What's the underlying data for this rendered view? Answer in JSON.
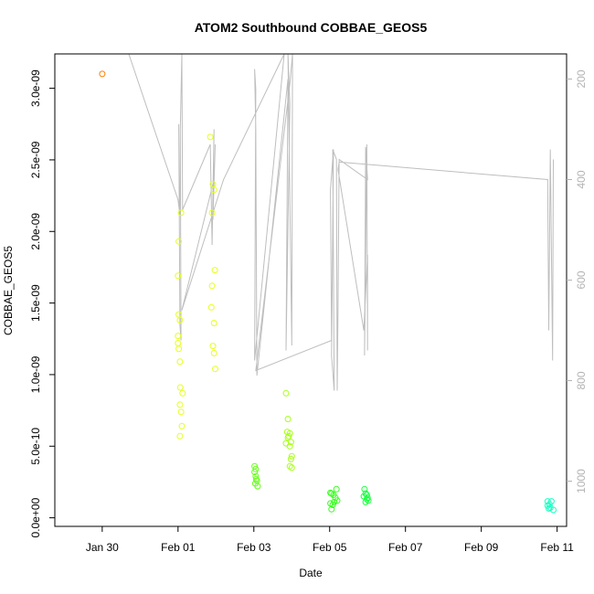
{
  "chart_data": {
    "type": "scatter",
    "title": "ATOM2 Southbound COBBAE_GEOS5",
    "xlabel": "Date",
    "ylabel": "COBBAE_GEOS5",
    "x_ticks": [
      "Jan 30",
      "Feb 01",
      "Feb 03",
      "Feb 05",
      "Feb 07",
      "Feb 09",
      "Feb 11"
    ],
    "y_ticks": [
      "0.0e+00",
      "5.0e-10",
      "1.0e-09",
      "1.5e-09",
      "2.0e-09",
      "2.5e-09",
      "3.0e-09"
    ],
    "y2_ticks": [
      "200",
      "400",
      "600",
      "800",
      "1000"
    ],
    "xlim": [
      -2.25,
      11.25
    ],
    "ylim": [
      -6e-11,
      3.24e-09
    ],
    "y2lim": [
      1090,
      150
    ],
    "colors": {
      "orange": "#ff8000",
      "yellow": "#e6ff1a",
      "yellowgreen": "#a8ff1a",
      "green1": "#66ff1a",
      "green2": "#33ff1a",
      "green3": "#1aff40",
      "green4": "#1aff66",
      "cyan": "#1affc4",
      "secondary_line": "#bebebe"
    },
    "series": [
      {
        "color_key": "orange",
        "points": [
          [
            -1.0,
            3.1e-09
          ]
        ]
      },
      {
        "color_key": "yellow",
        "points": [
          [
            1.0,
            1.22e-09
          ],
          [
            1.0,
            1.27e-09
          ],
          [
            1.02,
            1.42e-09
          ],
          [
            1.0,
            1.69e-09
          ],
          [
            1.02,
            1.93e-09
          ],
          [
            1.05,
            1.38e-09
          ],
          [
            1.08,
            2.13e-09
          ],
          [
            1.05,
            1.09e-09
          ],
          [
            1.06,
            9.1e-10
          ],
          [
            1.12,
            8.7e-10
          ],
          [
            1.05,
            7.9e-10
          ],
          [
            1.08,
            7.4e-10
          ],
          [
            1.1,
            6.4e-10
          ],
          [
            1.05,
            5.7e-10
          ],
          [
            1.02,
            1.18e-09
          ]
        ]
      },
      {
        "color_key": "yellow",
        "points": [
          [
            1.85,
            2.66e-09
          ],
          [
            1.92,
            2.33e-09
          ],
          [
            1.95,
            2.29e-09
          ],
          [
            1.9,
            2.13e-09
          ],
          [
            1.97,
            1.73e-09
          ],
          [
            1.9,
            1.62e-09
          ],
          [
            1.88,
            1.47e-09
          ],
          [
            1.95,
            1.36e-09
          ],
          [
            1.92,
            1.2e-09
          ],
          [
            1.95,
            1.15e-09
          ],
          [
            1.98,
            1.04e-09
          ]
        ]
      },
      {
        "color_key": "green1",
        "points": [
          [
            3.02,
            3.6e-10
          ],
          [
            3.05,
            3.4e-10
          ],
          [
            3.02,
            3.2e-10
          ],
          [
            3.05,
            2.9e-10
          ],
          [
            3.08,
            2.6e-10
          ],
          [
            3.04,
            2.4e-10
          ],
          [
            3.1,
            2.2e-10
          ],
          [
            3.06,
            2.7e-10
          ]
        ]
      },
      {
        "color_key": "yellowgreen",
        "points": [
          [
            3.85,
            8.7e-10
          ],
          [
            3.9,
            6.9e-10
          ],
          [
            3.88,
            6e-10
          ],
          [
            3.95,
            5.9e-10
          ],
          [
            3.9,
            5.6e-10
          ],
          [
            3.98,
            5.3e-10
          ],
          [
            3.85,
            5.2e-10
          ],
          [
            3.95,
            5e-10
          ],
          [
            4.0,
            4.3e-10
          ],
          [
            3.98,
            4.1e-10
          ],
          [
            3.95,
            3.6e-10
          ],
          [
            4.0,
            3.5e-10
          ],
          [
            3.92,
            5.7e-10
          ]
        ]
      },
      {
        "color_key": "green2",
        "points": [
          [
            5.02,
            1.75e-10
          ],
          [
            5.05,
            1.7e-10
          ],
          [
            5.1,
            1.6e-10
          ],
          [
            5.02,
            1e-10
          ],
          [
            5.08,
            9e-11
          ],
          [
            5.05,
            6e-11
          ],
          [
            5.12,
            1.1e-10
          ],
          [
            5.2,
            1.2e-10
          ],
          [
            5.18,
            2e-10
          ],
          [
            5.15,
            1.4e-10
          ]
        ]
      },
      {
        "color_key": "green3",
        "points": [
          [
            5.92,
            2e-10
          ],
          [
            5.95,
            1.7e-10
          ],
          [
            5.98,
            1.6e-10
          ],
          [
            5.9,
            1.5e-10
          ],
          [
            6.0,
            1.4e-10
          ],
          [
            5.95,
            1.1e-10
          ],
          [
            6.02,
            1.2e-10
          ],
          [
            5.98,
            1.3e-10
          ]
        ]
      },
      {
        "color_key": "cyan",
        "points": [
          [
            10.75,
            1.15e-10
          ],
          [
            10.85,
            1.15e-10
          ],
          [
            10.8,
            9.5e-11
          ],
          [
            10.75,
            8.5e-11
          ],
          [
            10.82,
            7e-11
          ],
          [
            10.9,
            5.5e-11
          ],
          [
            10.78,
            6.5e-11
          ]
        ]
      }
    ],
    "secondary_line": [
      [
        -1.5,
        0
      ],
      [
        -0.3,
        150
      ],
      [
        1.0,
        440
      ],
      [
        1.05,
        470
      ],
      [
        1.02,
        290
      ],
      [
        1.05,
        690
      ],
      [
        1.08,
        720
      ],
      [
        1.06,
        300
      ],
      [
        1.1,
        80
      ],
      [
        1.12,
        460
      ],
      [
        1.85,
        330
      ],
      [
        1.9,
        530
      ],
      [
        1.95,
        300
      ],
      [
        1.92,
        480
      ],
      [
        1.98,
        330
      ],
      [
        1.95,
        400
      ],
      [
        1.1,
        660
      ],
      [
        2.2,
        400
      ],
      [
        3.8,
        100
      ],
      [
        3.02,
        760
      ],
      [
        3.05,
        220
      ],
      [
        3.02,
        180
      ],
      [
        3.05,
        300
      ],
      [
        3.08,
        790
      ],
      [
        3.9,
        200
      ],
      [
        3.85,
        740
      ],
      [
        3.95,
        250
      ],
      [
        3.9,
        100
      ],
      [
        4.0,
        730
      ],
      [
        4.02,
        90
      ],
      [
        3.95,
        210
      ],
      [
        3.05,
        780
      ],
      [
        5.05,
        720
      ],
      [
        5.02,
        420
      ],
      [
        5.1,
        340
      ],
      [
        5.05,
        750
      ],
      [
        5.12,
        820
      ],
      [
        5.08,
        340
      ],
      [
        5.18,
        360
      ],
      [
        5.2,
        820
      ],
      [
        5.22,
        650
      ],
      [
        5.25,
        360
      ],
      [
        6.0,
        400
      ],
      [
        5.95,
        335
      ],
      [
        5.92,
        750
      ],
      [
        5.98,
        330
      ],
      [
        6.0,
        740
      ],
      [
        6.0,
        550
      ],
      [
        5.9,
        700
      ],
      [
        5.22,
        380
      ],
      [
        5.25,
        365
      ],
      [
        10.75,
        400
      ],
      [
        10.78,
        700
      ],
      [
        10.82,
        340
      ],
      [
        10.88,
        760
      ],
      [
        10.9,
        360
      ]
    ]
  }
}
